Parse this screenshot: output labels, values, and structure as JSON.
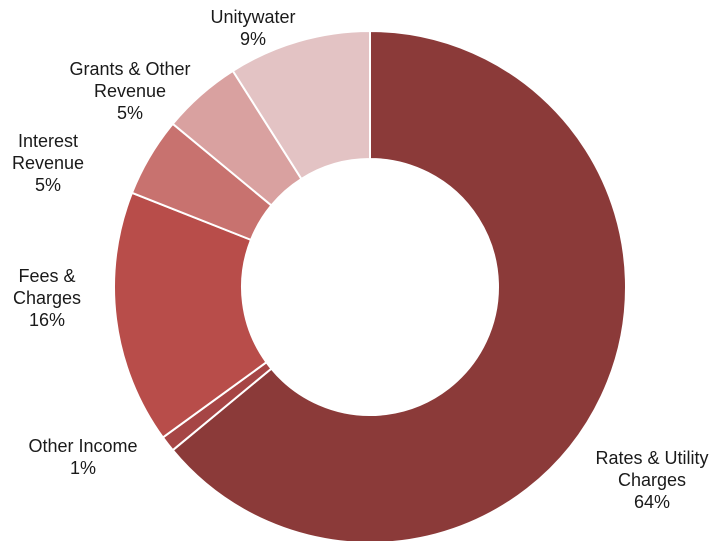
{
  "chart_data": {
    "type": "pie",
    "title": "",
    "labels": [
      "Rates & Utility Charges",
      "Other Income",
      "Fees & Charges",
      "Interest Revenue",
      "Grants & Other Revenue",
      "Unitywater"
    ],
    "values": [
      64,
      1,
      16,
      5,
      5,
      9
    ],
    "value_labels": [
      "64%",
      "1%",
      "16%",
      "5%",
      "5%",
      "9%"
    ],
    "colors": [
      "#8b3a39",
      "#a64545",
      "#b84d4a",
      "#c8726f",
      "#d9a1a0",
      "#e3c3c4"
    ],
    "label_lines": [
      [
        "Rates & Utility",
        "Charges",
        "64%"
      ],
      [
        "Other Income",
        "1%"
      ],
      [
        "Fees &",
        "Charges",
        "16%"
      ],
      [
        "Interest",
        "Revenue",
        "5%"
      ],
      [
        "Grants & Other",
        "Revenue",
        "5%"
      ],
      [
        "Unitywater",
        "9%"
      ]
    ],
    "donut": true,
    "legend": "none"
  }
}
